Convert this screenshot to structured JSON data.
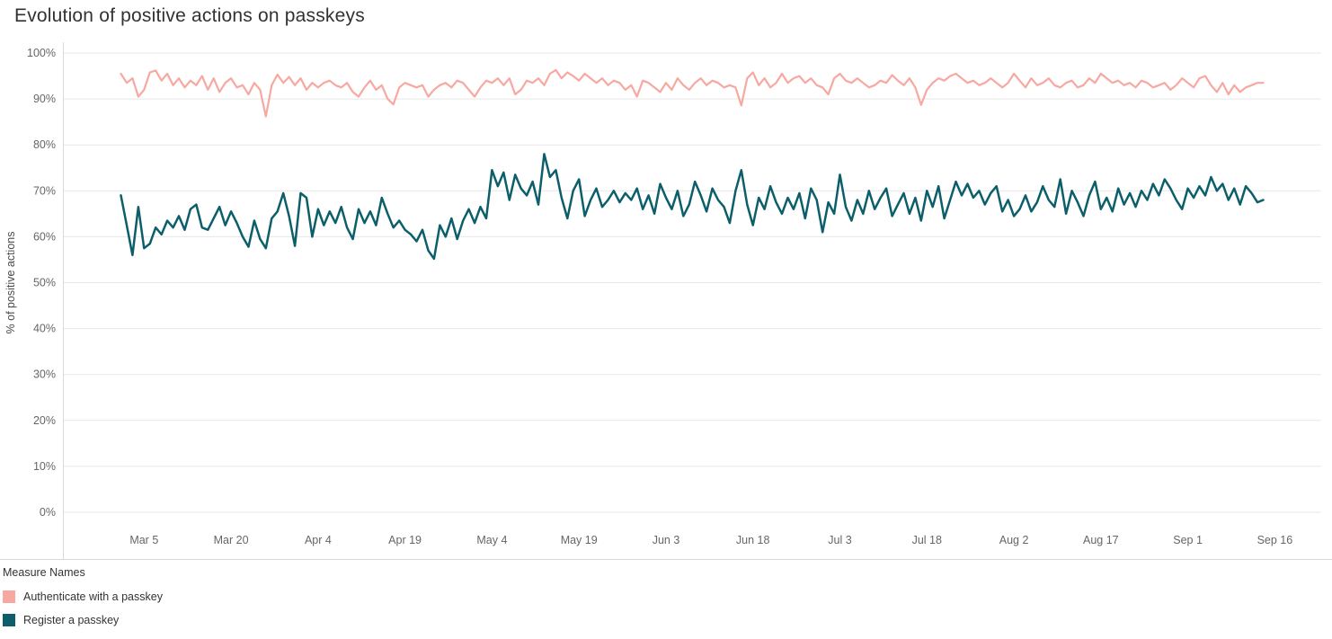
{
  "header": {
    "title": "Evolution of positive actions on passkeys"
  },
  "legend": {
    "title": "Measure Names",
    "items": [
      {
        "label": "Authenticate with a passkey",
        "color": "#f7a8a0"
      },
      {
        "label": "Register a passkey",
        "color": "#0c5f6a"
      }
    ]
  },
  "chart_data": {
    "type": "line",
    "title": "Evolution of positive actions on passkeys",
    "xlabel": "",
    "ylabel": "% of positive actions",
    "ylim": [
      0,
      100
    ],
    "grid": "horizontal",
    "legend_position": "bottom-left",
    "y_tick_labels": [
      "0%",
      "10%",
      "20%",
      "30%",
      "40%",
      "50%",
      "60%",
      "70%",
      "80%",
      "90%",
      "100%"
    ],
    "x_tick_labels": [
      "Mar 5",
      "Mar 20",
      "Apr 4",
      "Apr 19",
      "May 4",
      "May 19",
      "Jun 3",
      "Jun 18",
      "Jul 3",
      "Jul 18",
      "Aug 2",
      "Aug 17",
      "Sep 1",
      "Sep 16"
    ],
    "x_unit": "day",
    "x_start_label": "Mar 1",
    "x_tick_day_indices": [
      4,
      19,
      34,
      49,
      64,
      79,
      94,
      109,
      124,
      139,
      154,
      169,
      184,
      199
    ],
    "series": [
      {
        "name": "Authenticate with a passkey",
        "color": "#f7a8a0",
        "values": [
          95.5,
          93.5,
          94.5,
          90.5,
          92.0,
          95.8,
          96.2,
          94.0,
          95.5,
          93.0,
          94.5,
          92.5,
          94.0,
          93.0,
          95.0,
          92.0,
          94.5,
          91.5,
          93.5,
          94.5,
          92.5,
          93.0,
          91.0,
          93.5,
          92.0,
          86.2,
          93.0,
          95.3,
          93.5,
          94.8,
          93.0,
          94.5,
          92.0,
          93.5,
          92.5,
          93.5,
          94.0,
          93.0,
          92.5,
          93.5,
          91.5,
          90.5,
          92.5,
          94.0,
          92.0,
          93.0,
          90.0,
          88.8,
          92.5,
          93.5,
          93.0,
          92.5,
          93.0,
          90.5,
          92.0,
          93.0,
          93.5,
          92.5,
          94.0,
          93.5,
          92.0,
          90.5,
          92.5,
          94.0,
          93.5,
          94.5,
          93.0,
          94.5,
          91.0,
          92.0,
          94.0,
          93.5,
          94.5,
          93.0,
          95.5,
          96.3,
          94.5,
          95.8,
          95.0,
          94.0,
          95.5,
          94.5,
          93.5,
          94.5,
          93.0,
          94.0,
          93.5,
          92.0,
          93.0,
          90.5,
          94.0,
          93.5,
          92.5,
          91.5,
          93.5,
          92.0,
          94.5,
          93.0,
          92.0,
          93.5,
          94.5,
          93.0,
          94.0,
          93.5,
          92.5,
          93.0,
          92.5,
          88.6,
          94.5,
          95.8,
          93.0,
          94.5,
          92.5,
          93.5,
          95.5,
          93.5,
          94.5,
          95.0,
          93.5,
          94.5,
          93.0,
          92.5,
          91.0,
          94.5,
          95.5,
          94.0,
          93.5,
          94.5,
          93.5,
          92.5,
          93.0,
          94.0,
          93.5,
          95.2,
          94.0,
          93.0,
          94.5,
          92.5,
          88.7,
          92.0,
          93.5,
          94.5,
          94.0,
          95.0,
          95.5,
          94.5,
          93.5,
          94.0,
          93.0,
          93.5,
          94.5,
          93.5,
          92.5,
          93.5,
          95.5,
          94.0,
          92.5,
          94.5,
          93.0,
          93.5,
          94.5,
          93.0,
          92.5,
          93.5,
          94.0,
          92.5,
          93.0,
          94.5,
          93.5,
          95.5,
          94.5,
          93.5,
          94.0,
          93.0,
          93.5,
          92.5,
          94.0,
          93.5,
          92.5,
          93.0,
          93.5,
          92.0,
          93.0,
          94.5,
          93.5,
          92.5,
          94.5,
          95.0,
          93.0,
          91.5,
          93.5,
          91.0,
          93.0,
          91.5,
          92.5,
          93.0,
          93.5,
          93.5
        ]
      },
      {
        "name": "Register a passkey",
        "color": "#0c5f6a",
        "values": [
          69.0,
          62.5,
          56.0,
          66.5,
          57.5,
          58.5,
          62.0,
          60.5,
          63.5,
          62.0,
          64.5,
          61.5,
          66.0,
          67.0,
          62.0,
          61.5,
          64.0,
          66.5,
          62.5,
          65.5,
          63.0,
          60.0,
          57.8,
          63.5,
          59.5,
          57.5,
          64.0,
          65.5,
          69.5,
          64.5,
          58.0,
          69.5,
          68.5,
          60.0,
          66.0,
          62.5,
          65.5,
          63.0,
          66.5,
          62.0,
          59.5,
          66.0,
          63.0,
          65.5,
          62.5,
          68.5,
          65.0,
          62.0,
          63.5,
          61.5,
          60.5,
          59.0,
          61.5,
          57.0,
          55.2,
          62.5,
          60.0,
          64.0,
          59.5,
          63.5,
          66.0,
          63.0,
          66.5,
          64.0,
          74.5,
          71.0,
          74.0,
          68.0,
          73.5,
          70.5,
          69.0,
          72.0,
          67.0,
          78.0,
          73.0,
          74.5,
          68.5,
          64.0,
          70.0,
          72.5,
          64.5,
          68.0,
          70.5,
          66.5,
          68.0,
          70.0,
          67.5,
          69.5,
          68.0,
          70.5,
          66.0,
          69.0,
          65.0,
          71.5,
          68.5,
          66.0,
          70.0,
          64.5,
          67.0,
          72.0,
          69.0,
          65.5,
          70.5,
          68.0,
          66.5,
          63.0,
          70.0,
          74.5,
          67.0,
          62.5,
          68.5,
          66.0,
          71.0,
          67.5,
          65.0,
          68.5,
          66.0,
          69.5,
          64.0,
          70.5,
          68.0,
          61.0,
          67.5,
          65.0,
          73.5,
          66.5,
          63.5,
          68.0,
          65.0,
          70.0,
          66.0,
          68.5,
          70.5,
          64.5,
          67.0,
          69.5,
          65.0,
          68.5,
          63.5,
          70.0,
          66.5,
          71.0,
          64.0,
          68.0,
          72.0,
          69.0,
          71.5,
          68.5,
          70.0,
          67.0,
          69.5,
          71.0,
          65.5,
          68.0,
          64.5,
          66.0,
          69.0,
          65.5,
          67.5,
          71.0,
          68.0,
          66.5,
          72.5,
          65.0,
          70.0,
          67.5,
          64.5,
          69.0,
          72.0,
          66.0,
          68.5,
          65.5,
          70.5,
          67.0,
          69.5,
          66.5,
          70.0,
          68.0,
          71.5,
          69.0,
          72.5,
          70.5,
          68.0,
          66.0,
          70.5,
          68.5,
          71.0,
          69.0,
          73.0,
          70.0,
          71.5,
          68.0,
          70.5,
          67.0,
          71.0,
          69.5,
          67.5,
          68.0
        ]
      }
    ]
  }
}
